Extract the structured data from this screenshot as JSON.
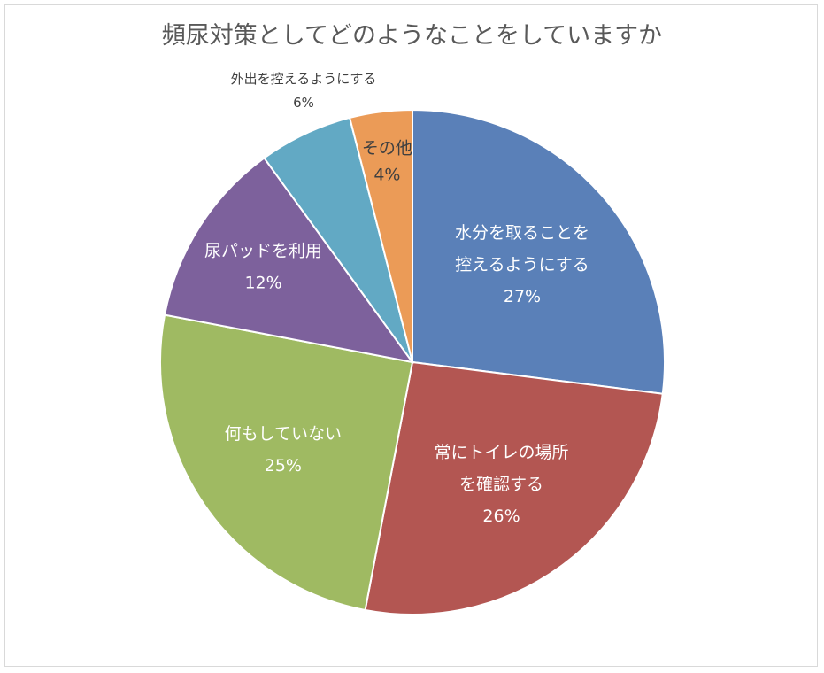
{
  "chart_data": {
    "type": "pie",
    "title": "頻尿対策としてどのようなことをしていますか",
    "slices": [
      {
        "name": "水分を取ることを\n控えるようにする",
        "value": 27,
        "label": "27%",
        "color": "#5a80b8"
      },
      {
        "name": "常にトイレの場所\nを確認する",
        "value": 26,
        "label": "26%",
        "color": "#b35652"
      },
      {
        "name": "何もしていない",
        "value": 25,
        "label": "25%",
        "color": "#9fba62"
      },
      {
        "name": "尿パッドを利用",
        "value": 12,
        "label": "12%",
        "color": "#7d619c"
      },
      {
        "name": "外出を控えるようにする",
        "value": 6,
        "label": "6%",
        "color": "#62a9c4"
      },
      {
        "name": "その他",
        "value": 4,
        "label": "4%",
        "color": "#eb9b57"
      }
    ],
    "start_angle_deg": 0,
    "direction": "clockwise",
    "legend": "none"
  }
}
